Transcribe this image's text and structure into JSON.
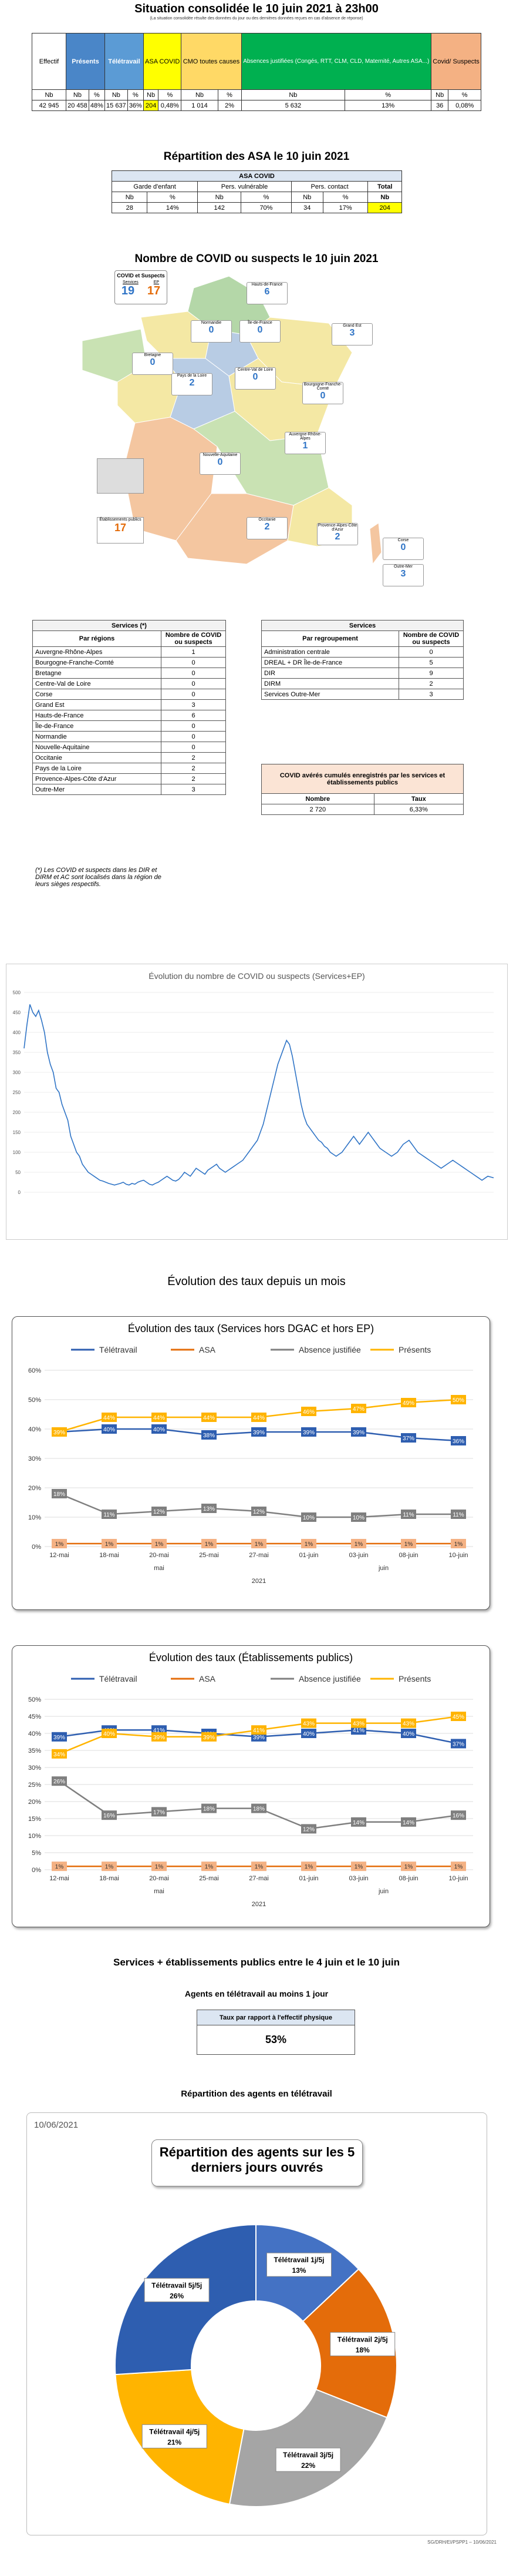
{
  "sit": {
    "title": "Situation consolidée le 10 juin 2021 à 23h00",
    "note": "(La situation consolidée résulte des données du jour ou des dernières données reçues en cas d'absence de réponse)",
    "h": {
      "effectif": "Effectif",
      "presents": "Présents",
      "teletravail": "Télétravail",
      "asa": "ASA COVID",
      "cmo": "CMO toutes causes",
      "absences": "Absences justifiées (Congés, RTT, CLM, CLD, Maternité, Autres ASA...)",
      "covid": "Covid/ Suspects"
    },
    "sub": [
      "Nb",
      "Nb",
      "%",
      "Nb",
      "%",
      "Nb",
      "%",
      "Nb",
      "%",
      "Nb",
      "%",
      "Nb",
      "%"
    ],
    "vals": [
      "42 945",
      "20 458",
      "48%",
      "15 637",
      "36%",
      "204",
      "0,48%",
      "1 014",
      "2%",
      "5 632",
      "13%",
      "36",
      "0,08%"
    ]
  },
  "asa": {
    "title": "Répartition des ASA le 10 juin 2021",
    "head": "ASA COVID",
    "cols": [
      "Garde d'enfant",
      "Pers. vulnérable",
      "Pers. contact",
      "Total"
    ],
    "sub": [
      "Nb",
      "%",
      "Nb",
      "%",
      "Nb",
      "%",
      "Nb"
    ],
    "vals": [
      "28",
      "14%",
      "142",
      "70%",
      "34",
      "17%",
      "204"
    ]
  },
  "map": {
    "title": "Nombre de COVID ou suspects le 10 juin 2021",
    "legend_title": "COVID et Suspects",
    "legend_labels": [
      "Services",
      "EP"
    ],
    "legend_vals": [
      "19",
      "17"
    ],
    "regions": [
      {
        "name": "Hauts-de-France",
        "v": "6"
      },
      {
        "name": "Normandie",
        "v": "0"
      },
      {
        "name": "Île-de-France",
        "v": "0"
      },
      {
        "name": "Grand Est",
        "v": "3"
      },
      {
        "name": "Bretagne",
        "v": "0"
      },
      {
        "name": "Pays de la Loire",
        "v": "2"
      },
      {
        "name": "Centre-Val de Loire",
        "v": "0"
      },
      {
        "name": "Bourgogne-Franche-Comté",
        "v": "0"
      },
      {
        "name": "Nouvelle-Aquitaine",
        "v": "0"
      },
      {
        "name": "Auvergne-Rhône-Alpes",
        "v": "1"
      },
      {
        "name": "Occitanie",
        "v": "2"
      },
      {
        "name": "Provence-Alpes-Côte d'Azur",
        "v": "2"
      },
      {
        "name": "Corse",
        "v": "0"
      },
      {
        "name": "Outre-Mer",
        "v": "3"
      },
      {
        "name": "Établissements publics",
        "v": "17"
      }
    ]
  },
  "svc": {
    "title": "Services (*)",
    "c1": "Par régions",
    "c2": "Nombre de COVID ou suspects",
    "rows": [
      [
        "Auvergne-Rhône-Alpes",
        "1"
      ],
      [
        "Bourgogne-Franche-Comté",
        "0"
      ],
      [
        "Bretagne",
        "0"
      ],
      [
        "Centre-Val de Loire",
        "0"
      ],
      [
        "Corse",
        "0"
      ],
      [
        "Grand Est",
        "3"
      ],
      [
        "Hauts-de-France",
        "6"
      ],
      [
        "Île-de-France",
        "0"
      ],
      [
        "Normandie",
        "0"
      ],
      [
        "Nouvelle-Aquitaine",
        "0"
      ],
      [
        "Occitanie",
        "2"
      ],
      [
        "Pays de la Loire",
        "2"
      ],
      [
        "Provence-Alpes-Côte d'Azur",
        "2"
      ],
      [
        "Outre-Mer",
        "3"
      ]
    ],
    "foot": "(*) Les COVID et suspects dans les DIR et DIRM et AC sont localisés dans la région de leurs sièges respectifs."
  },
  "svc2": {
    "title": "Services",
    "c1": "Par regroupement",
    "c2": "Nombre de COVID ou suspects",
    "rows": [
      [
        "Administration centrale",
        "0"
      ],
      [
        "DREAL + DR Île-de-France",
        "5"
      ],
      [
        "DIR",
        "9"
      ],
      [
        "DIRM",
        "2"
      ],
      [
        "Services Outre-Mer",
        "3"
      ]
    ]
  },
  "ep": {
    "title": "COVID avérés cumulés enregistrés par les services et établissements publics",
    "c1": "Nombre",
    "c2": "Taux",
    "v1": "2 720",
    "v2": "6,33%"
  },
  "chart_data": [
    {
      "type": "line",
      "title": "Évolution du nombre de COVID ou suspects (Services+EP)",
      "ylim": [
        0,
        500
      ],
      "yticks": [
        "500",
        "450",
        "400",
        "350",
        "300",
        "250",
        "200",
        "150",
        "100",
        "50",
        "0"
      ],
      "y": [
        360,
        420,
        470,
        450,
        440,
        455,
        430,
        400,
        350,
        320,
        300,
        260,
        250,
        220,
        200,
        180,
        140,
        120,
        100,
        90,
        70,
        60,
        50,
        45,
        40,
        35,
        30,
        28,
        25,
        22,
        20,
        18,
        20,
        22,
        25,
        20,
        18,
        22,
        20,
        25,
        28,
        30,
        25,
        20,
        18,
        22,
        25,
        30,
        35,
        40,
        35,
        30,
        28,
        32,
        40,
        50,
        45,
        40,
        50,
        60,
        55,
        50,
        45,
        55,
        60,
        65,
        70,
        60,
        55,
        50,
        55,
        60,
        65,
        70,
        75,
        80,
        90,
        100,
        110,
        120,
        130,
        150,
        170,
        200,
        230,
        260,
        290,
        320,
        340,
        360,
        380,
        370,
        340,
        300,
        260,
        220,
        190,
        170,
        160,
        150,
        140,
        130,
        125,
        115,
        110,
        100,
        95,
        90,
        95,
        100,
        110,
        120,
        130,
        140,
        130,
        120,
        130,
        140,
        150,
        140,
        130,
        120,
        110,
        105,
        100,
        95,
        90,
        95,
        100,
        110,
        120,
        125,
        130,
        120,
        110,
        100,
        95,
        90,
        85,
        80,
        75,
        70,
        65,
        60,
        65,
        70,
        75,
        80,
        75,
        70,
        65,
        60,
        55,
        50,
        45,
        40,
        35,
        30,
        35,
        40,
        38,
        36
      ]
    },
    {
      "type": "line",
      "title": "Évolution des taux (Services hors DGAC et hors EP)",
      "categories": [
        "12-mai",
        "18-mai",
        "20-mai",
        "25-mai",
        "27-mai",
        "01-juin",
        "03-juin",
        "08-juin",
        "10-juin"
      ],
      "group_labels": [
        "mai",
        "juin",
        "2021"
      ],
      "ylim": [
        0,
        60
      ],
      "yticks": [
        "60%",
        "50%",
        "40%",
        "30%",
        "20%",
        "10%",
        "0%"
      ],
      "series": [
        {
          "name": "Télétravail",
          "values": [
            39,
            40,
            40,
            38,
            39,
            39,
            39,
            37,
            36
          ]
        },
        {
          "name": "ASA",
          "values": [
            1,
            1,
            1,
            1,
            1,
            1,
            1,
            1,
            1
          ]
        },
        {
          "name": "Absence justifiée",
          "values": [
            18,
            11,
            12,
            13,
            12,
            10,
            10,
            11,
            11
          ]
        },
        {
          "name": "Présents",
          "values": [
            39,
            44,
            44,
            44,
            44,
            46,
            47,
            49,
            50
          ]
        }
      ]
    },
    {
      "type": "line",
      "title": "Évolution des taux (Établissements publics)",
      "categories": [
        "12-mai",
        "18-mai",
        "20-mai",
        "25-mai",
        "27-mai",
        "01-juin",
        "03-juin",
        "08-juin",
        "10-juin"
      ],
      "group_labels": [
        "mai",
        "juin",
        "2021"
      ],
      "ylim": [
        0,
        50
      ],
      "yticks": [
        "50%",
        "45%",
        "40%",
        "35%",
        "30%",
        "25%",
        "20%",
        "15%",
        "10%",
        "5%",
        "0%"
      ],
      "series": [
        {
          "name": "Télétravail",
          "values": [
            39,
            41,
            41,
            40,
            39,
            40,
            41,
            40,
            37
          ]
        },
        {
          "name": "ASA",
          "values": [
            1,
            1,
            1,
            1,
            1,
            1,
            1,
            1,
            1
          ]
        },
        {
          "name": "Absence justifiée",
          "values": [
            26,
            16,
            17,
            18,
            18,
            12,
            14,
            14,
            16
          ]
        },
        {
          "name": "Présents",
          "values": [
            34,
            40,
            39,
            39,
            41,
            43,
            43,
            43,
            45
          ]
        }
      ]
    },
    {
      "type": "pie",
      "title": "Répartition des agents sur les 5 derniers jours ouvrés",
      "date": "10/06/2021",
      "slices": [
        {
          "label": "Télétravail 1j/5j",
          "value": 13
        },
        {
          "label": "Télétravail 2j/5j",
          "value": 18
        },
        {
          "label": "Télétravail 3j/5j",
          "value": 22
        },
        {
          "label": "Télétravail 4j/5j",
          "value": 21
        },
        {
          "label": "Télétravail 5j/5j",
          "value": 26
        }
      ],
      "colors": [
        "#4472c4",
        "#e46c0a",
        "#a5a5a5",
        "#ffb400",
        "#2e5eb0"
      ]
    }
  ],
  "evo_title": "Évolution des taux depuis un mois",
  "week_title": "Services + établissements publics entre le 4 juin et le 10 juin",
  "tt": {
    "title": "Agents en télétravail au moins 1 jour",
    "head": "Taux par rapport à l'effectif physique",
    "val": "53%"
  },
  "rep_title": "Répartition des agents en télétravail",
  "footer": "SG/DRH/EI/PSPP1 – 10/06/2021",
  "colors": {
    "blue": "#2f74c6",
    "orange": "#e46c0a",
    "grey": "#7f7f7f",
    "yellow": "#ffb400",
    "green": "#00b050",
    "salmon": "#f5cbad",
    "presents": "#4a86c8",
    "teletravail": "#5b9bd5",
    "asa": "#ffff00",
    "cmo": "#ffd966",
    "abs": "#00b050",
    "covid": "#f4b183"
  }
}
